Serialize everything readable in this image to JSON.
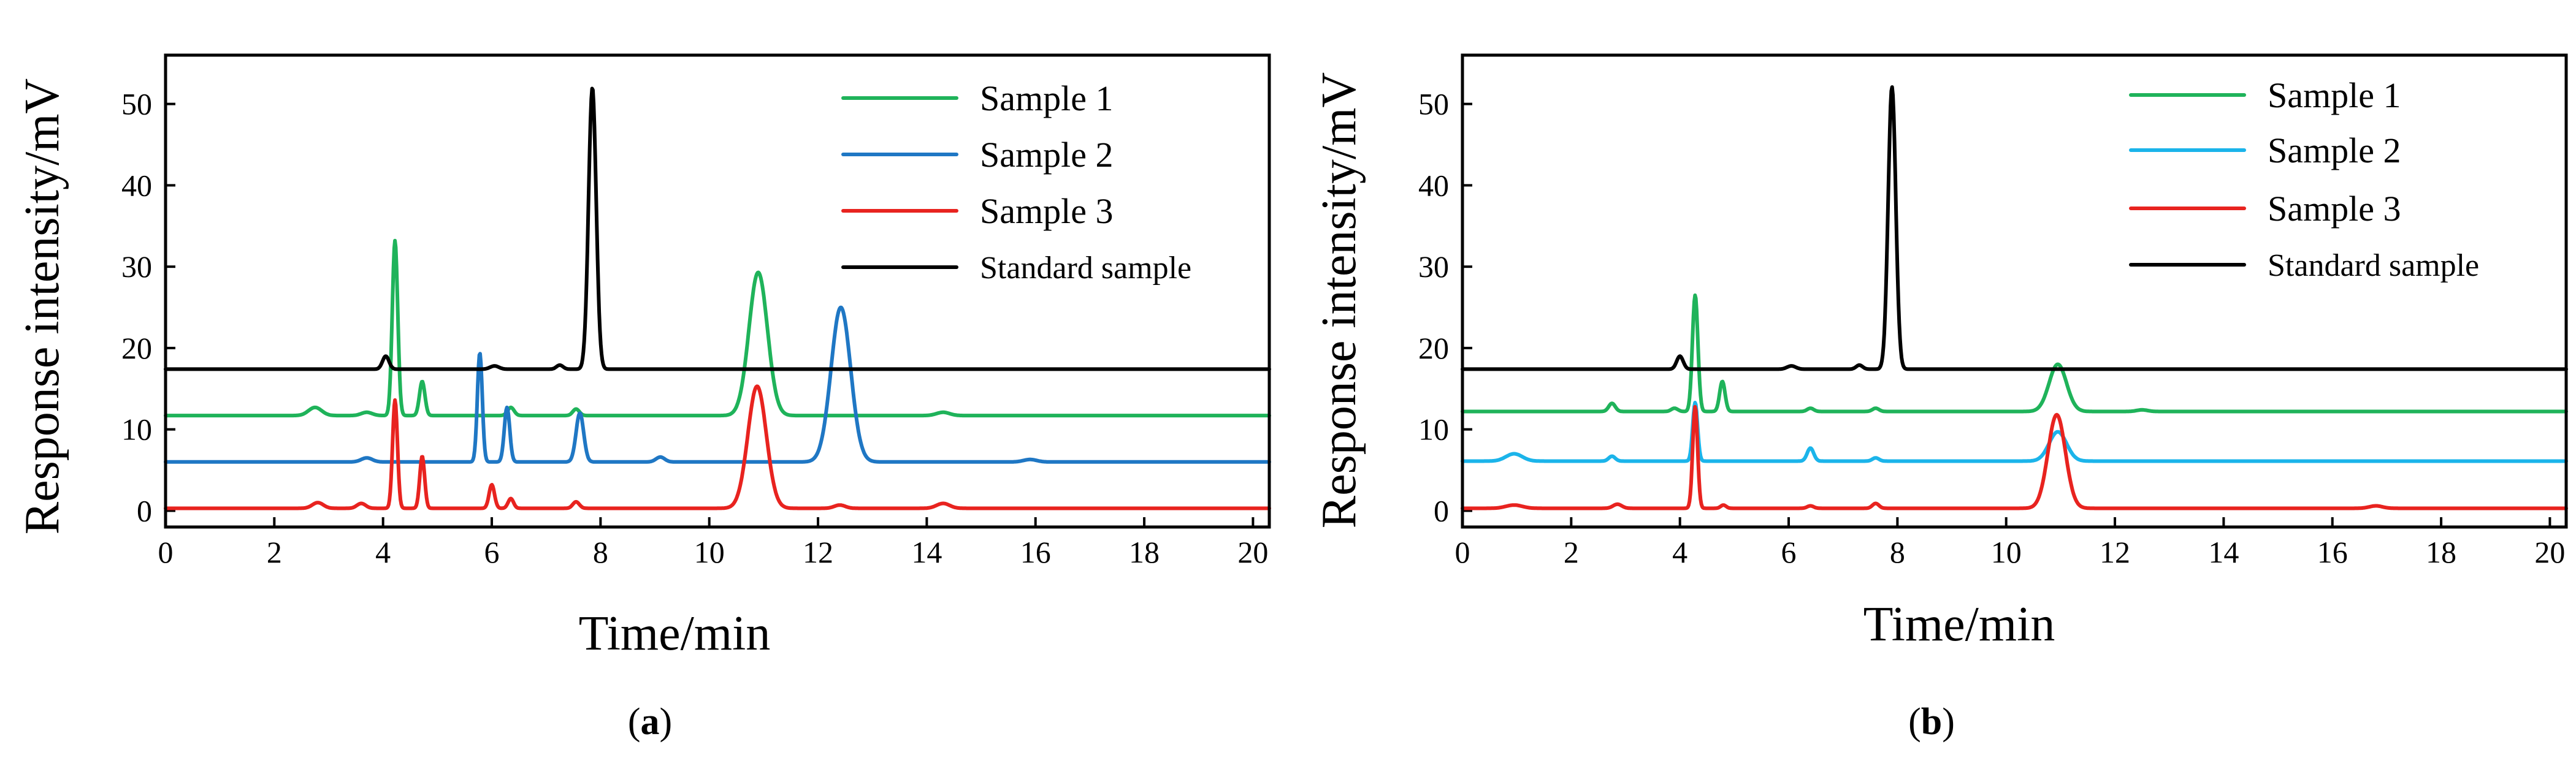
{
  "chart_data": [
    {
      "type": "line",
      "panel_label": "a",
      "xlabel": "Time/min",
      "ylabel": "Response intensity/mV",
      "xlim": [
        0,
        20.3
      ],
      "ylim": [
        -2,
        56
      ],
      "xticks": [
        0,
        2,
        4,
        6,
        8,
        10,
        12,
        14,
        16,
        18,
        20
      ],
      "yticks": [
        0,
        10,
        20,
        30,
        40,
        50
      ],
      "legend_position": "top-right",
      "series": [
        {
          "name": "Sample 1",
          "color": "#1fb35a",
          "baseline": 11.7,
          "peaks": [
            {
              "time": 2.75,
              "height": 1.0,
              "width": 0.12
            },
            {
              "time": 3.7,
              "height": 0.4,
              "width": 0.1
            },
            {
              "time": 4.22,
              "height": 21.5,
              "width": 0.05
            },
            {
              "time": 4.72,
              "height": 4.2,
              "width": 0.05
            },
            {
              "time": 6.35,
              "height": 1.0,
              "width": 0.06
            },
            {
              "time": 7.55,
              "height": 0.8,
              "width": 0.06
            },
            {
              "time": 10.9,
              "height": 17.6,
              "width": 0.17
            },
            {
              "time": 14.3,
              "height": 0.4,
              "width": 0.12
            }
          ]
        },
        {
          "name": "Sample 2",
          "color": "#1f77c4",
          "baseline": 6.0,
          "peaks": [
            {
              "time": 3.7,
              "height": 0.5,
              "width": 0.1
            },
            {
              "time": 5.78,
              "height": 13.4,
              "width": 0.045
            },
            {
              "time": 6.28,
              "height": 6.7,
              "width": 0.05
            },
            {
              "time": 7.62,
              "height": 6.0,
              "width": 0.07
            },
            {
              "time": 9.1,
              "height": 0.6,
              "width": 0.08
            },
            {
              "time": 12.42,
              "height": 19.0,
              "width": 0.18
            },
            {
              "time": 15.9,
              "height": 0.3,
              "width": 0.12
            }
          ]
        },
        {
          "name": "Sample 3",
          "color": "#e8231f",
          "baseline": 0.3,
          "peaks": [
            {
              "time": 2.8,
              "height": 0.7,
              "width": 0.1
            },
            {
              "time": 3.6,
              "height": 0.6,
              "width": 0.08
            },
            {
              "time": 4.22,
              "height": 13.3,
              "width": 0.045
            },
            {
              "time": 4.72,
              "height": 6.4,
              "width": 0.045
            },
            {
              "time": 6.0,
              "height": 2.9,
              "width": 0.05
            },
            {
              "time": 6.35,
              "height": 1.2,
              "width": 0.05
            },
            {
              "time": 7.55,
              "height": 0.8,
              "width": 0.06
            },
            {
              "time": 10.88,
              "height": 15.0,
              "width": 0.17
            },
            {
              "time": 12.4,
              "height": 0.4,
              "width": 0.1
            },
            {
              "time": 14.3,
              "height": 0.6,
              "width": 0.12
            }
          ]
        },
        {
          "name": "Standard sample",
          "color": "#000000",
          "baseline": 17.4,
          "peaks": [
            {
              "time": 4.05,
              "height": 1.6,
              "width": 0.06
            },
            {
              "time": 6.05,
              "height": 0.4,
              "width": 0.08
            },
            {
              "time": 7.25,
              "height": 0.5,
              "width": 0.06
            },
            {
              "time": 7.85,
              "height": 34.6,
              "width": 0.07
            }
          ]
        }
      ]
    },
    {
      "type": "line",
      "panel_label": "b",
      "xlabel": "Time/min",
      "ylabel": "Response intensity/mV",
      "xlim": [
        0,
        20.3
      ],
      "ylim": [
        -2,
        56
      ],
      "xticks": [
        0,
        2,
        4,
        6,
        8,
        10,
        12,
        14,
        16,
        18,
        20
      ],
      "yticks": [
        0,
        10,
        20,
        30,
        40,
        50
      ],
      "legend_position": "top-right",
      "series": [
        {
          "name": "Sample 1",
          "color": "#1fb35a",
          "baseline": 12.2,
          "peaks": [
            {
              "time": 2.75,
              "height": 1.0,
              "width": 0.06
            },
            {
              "time": 3.9,
              "height": 0.4,
              "width": 0.06
            },
            {
              "time": 4.28,
              "height": 14.3,
              "width": 0.05
            },
            {
              "time": 4.78,
              "height": 3.7,
              "width": 0.05
            },
            {
              "time": 6.4,
              "height": 0.4,
              "width": 0.06
            },
            {
              "time": 7.6,
              "height": 0.4,
              "width": 0.06
            },
            {
              "time": 10.95,
              "height": 5.8,
              "width": 0.16
            },
            {
              "time": 12.5,
              "height": 0.2,
              "width": 0.1
            }
          ]
        },
        {
          "name": "Sample 2",
          "color": "#1bb4ea",
          "baseline": 6.1,
          "peaks": [
            {
              "time": 0.95,
              "height": 0.9,
              "width": 0.15
            },
            {
              "time": 2.75,
              "height": 0.6,
              "width": 0.06
            },
            {
              "time": 4.28,
              "height": 7.2,
              "width": 0.045
            },
            {
              "time": 6.4,
              "height": 1.6,
              "width": 0.06
            },
            {
              "time": 7.6,
              "height": 0.4,
              "width": 0.06
            },
            {
              "time": 10.95,
              "height": 3.6,
              "width": 0.16
            }
          ]
        },
        {
          "name": "Sample 3",
          "color": "#e8231f",
          "baseline": 0.3,
          "peaks": [
            {
              "time": 0.95,
              "height": 0.4,
              "width": 0.15
            },
            {
              "time": 2.85,
              "height": 0.5,
              "width": 0.08
            },
            {
              "time": 4.28,
              "height": 12.5,
              "width": 0.045
            },
            {
              "time": 4.8,
              "height": 0.4,
              "width": 0.05
            },
            {
              "time": 6.4,
              "height": 0.3,
              "width": 0.06
            },
            {
              "time": 7.6,
              "height": 0.6,
              "width": 0.06
            },
            {
              "time": 10.93,
              "height": 11.5,
              "width": 0.16
            },
            {
              "time": 16.8,
              "height": 0.3,
              "width": 0.12
            }
          ]
        },
        {
          "name": "Standard sample",
          "color": "#000000",
          "baseline": 17.4,
          "peaks": [
            {
              "time": 4.0,
              "height": 1.6,
              "width": 0.06
            },
            {
              "time": 6.05,
              "height": 0.4,
              "width": 0.08
            },
            {
              "time": 7.3,
              "height": 0.5,
              "width": 0.06
            },
            {
              "time": 7.9,
              "height": 34.7,
              "width": 0.07
            }
          ]
        }
      ]
    }
  ]
}
